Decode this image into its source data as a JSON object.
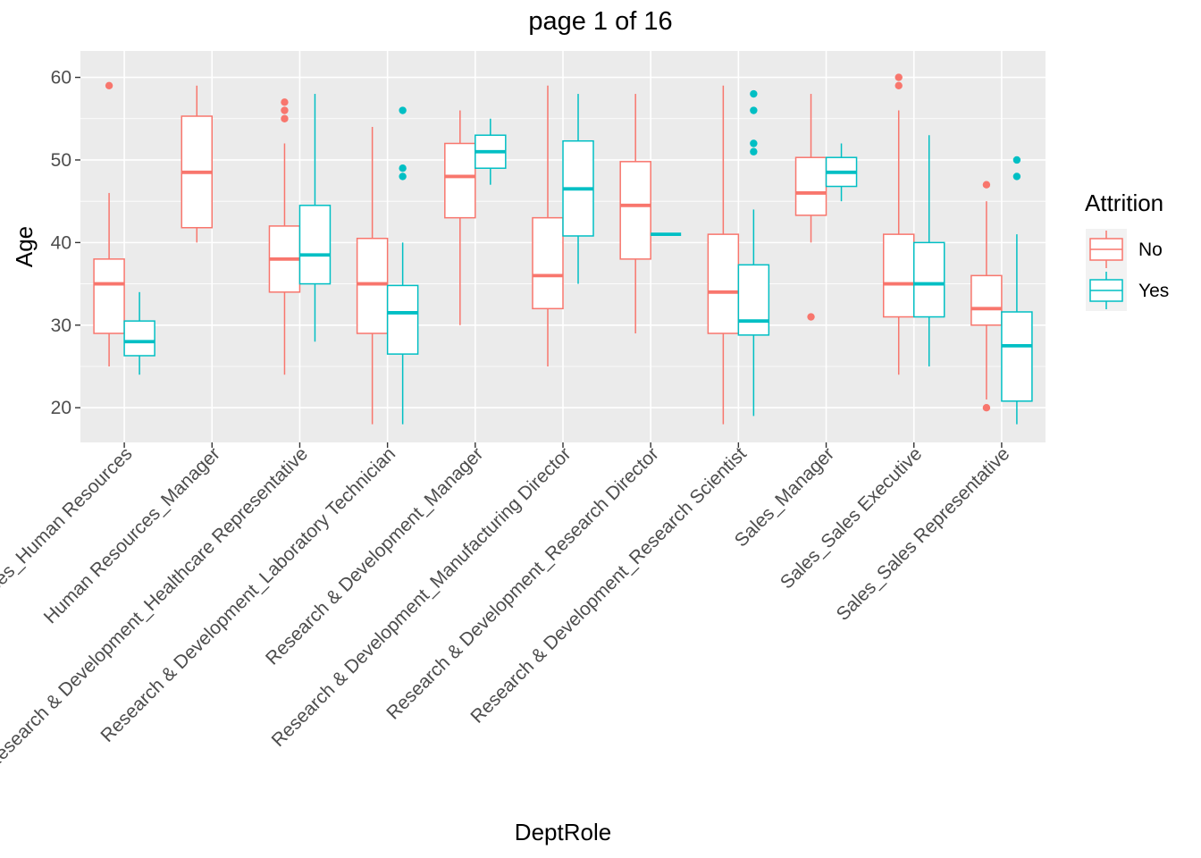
{
  "chart_data": {
    "type": "boxplot",
    "title": "page 1 of 16",
    "xlabel": "DeptRole",
    "ylabel": "Age",
    "ylim": [
      15.8,
      63.2
    ],
    "y_ticks": [
      20,
      30,
      40,
      50,
      60
    ],
    "grid": true,
    "legend": {
      "title": "Attrition",
      "position": "right",
      "entries": [
        "No",
        "Yes"
      ]
    },
    "colors": {
      "No": "#F8766D",
      "Yes": "#00BFC4",
      "panel": "#EBEBEB",
      "grid": "#FFFFFF",
      "axis_text": "#4D4D4D"
    },
    "categories": [
      "Human Resources_Human Resources",
      "Human Resources_Manager",
      "Research & Development_Healthcare Representative",
      "Research & Development_Laboratory Technician",
      "Research & Development_Manager",
      "Research & Development_Manufacturing Director",
      "Research & Development_Research Director",
      "Research & Development_Research Scientist",
      "Sales_Manager",
      "Sales_Sales Executive",
      "Sales_Sales Representative"
    ],
    "series": [
      {
        "name": "No",
        "boxes": [
          {
            "q1": 29,
            "median": 35,
            "q3": 38,
            "lower": 25,
            "upper": 46,
            "outliers": [
              59
            ]
          },
          {
            "q1": 41.8,
            "median": 48.5,
            "q3": 55.3,
            "lower": 40,
            "upper": 59,
            "outliers": []
          },
          {
            "q1": 34,
            "median": 38,
            "q3": 42,
            "lower": 24,
            "upper": 52,
            "outliers": [
              55,
              56,
              57
            ]
          },
          {
            "q1": 29,
            "median": 35,
            "q3": 40.5,
            "lower": 18,
            "upper": 54,
            "outliers": []
          },
          {
            "q1": 43,
            "median": 48,
            "q3": 52,
            "lower": 30,
            "upper": 56,
            "outliers": []
          },
          {
            "q1": 32,
            "median": 36,
            "q3": 43,
            "lower": 25,
            "upper": 59,
            "outliers": []
          },
          {
            "q1": 38,
            "median": 44.5,
            "q3": 49.8,
            "lower": 29,
            "upper": 58,
            "outliers": []
          },
          {
            "q1": 29,
            "median": 34,
            "q3": 41,
            "lower": 18,
            "upper": 59,
            "outliers": []
          },
          {
            "q1": 43.3,
            "median": 46,
            "q3": 50.3,
            "lower": 40,
            "upper": 58,
            "outliers": [
              31
            ]
          },
          {
            "q1": 31,
            "median": 35,
            "q3": 41,
            "lower": 24,
            "upper": 56,
            "outliers": [
              59,
              60
            ]
          },
          {
            "q1": 30,
            "median": 32,
            "q3": 36,
            "lower": 21,
            "upper": 45,
            "outliers": [
              20,
              47
            ]
          }
        ]
      },
      {
        "name": "Yes",
        "boxes": [
          {
            "q1": 26.3,
            "median": 28,
            "q3": 30.5,
            "lower": 24,
            "upper": 34,
            "outliers": []
          },
          null,
          {
            "q1": 35,
            "median": 38.5,
            "q3": 44.5,
            "lower": 28,
            "upper": 58,
            "outliers": []
          },
          {
            "q1": 26.5,
            "median": 31.5,
            "q3": 34.8,
            "lower": 18,
            "upper": 40,
            "outliers": [
              48,
              49,
              56
            ]
          },
          {
            "q1": 49,
            "median": 51,
            "q3": 53,
            "lower": 47,
            "upper": 55,
            "outliers": []
          },
          {
            "q1": 40.8,
            "median": 46.5,
            "q3": 52.3,
            "lower": 35,
            "upper": 58,
            "outliers": []
          },
          {
            "q1": 41,
            "median": 41,
            "q3": 41,
            "lower": 41,
            "upper": 41,
            "outliers": []
          },
          {
            "q1": 28.8,
            "median": 30.5,
            "q3": 37.3,
            "lower": 19,
            "upper": 44,
            "outliers": [
              51,
              52,
              56,
              58
            ]
          },
          {
            "q1": 46.8,
            "median": 48.5,
            "q3": 50.3,
            "lower": 45,
            "upper": 52,
            "outliers": []
          },
          {
            "q1": 31,
            "median": 35,
            "q3": 40,
            "lower": 25,
            "upper": 53,
            "outliers": []
          },
          {
            "q1": 20.8,
            "median": 27.5,
            "q3": 31.6,
            "lower": 18,
            "upper": 41,
            "outliers": [
              48,
              50
            ]
          }
        ]
      }
    ]
  }
}
